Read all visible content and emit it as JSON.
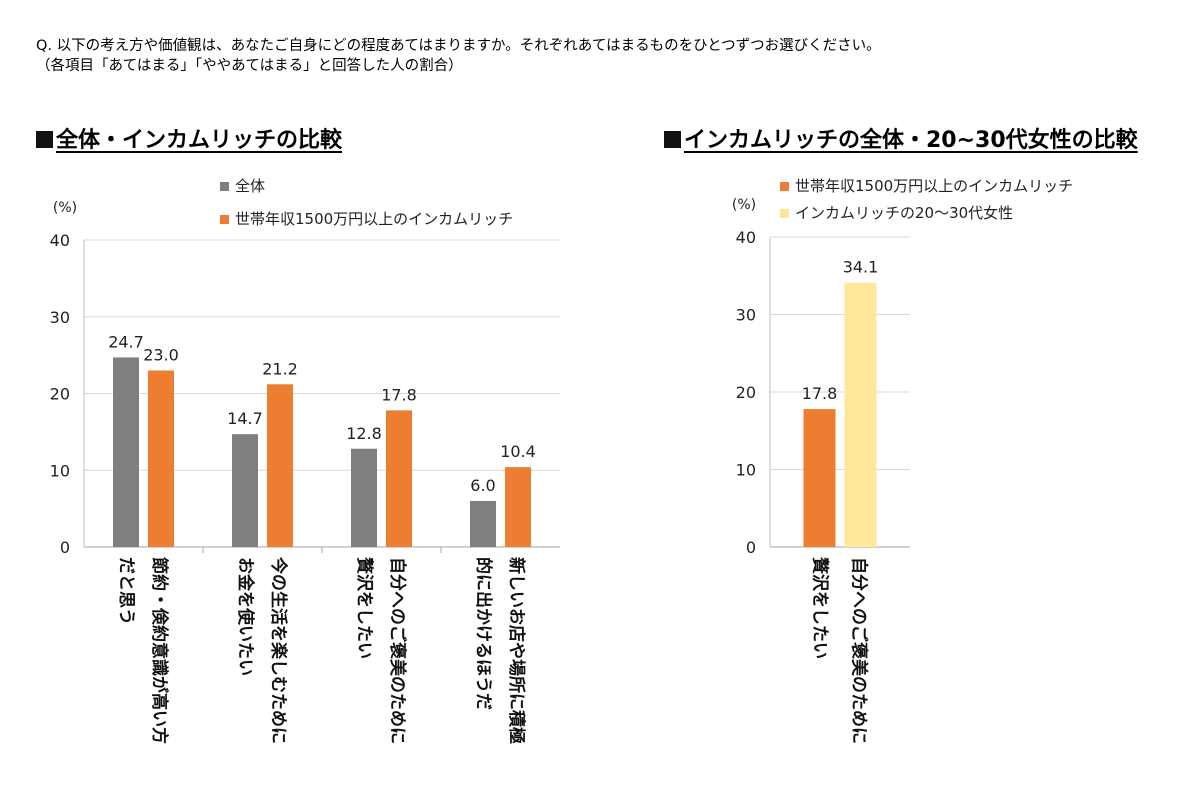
{
  "header": {
    "question": "Q. 以下の考え方や価値観は、あなたご自身にどの程度あてはまりますか。それぞれあてはまるものをひとつずつお選びください。",
    "note": "（各項目「あてはまる」「ややあてはまる」と回答した人の割合）"
  },
  "chart_data": [
    {
      "type": "bar",
      "title": "全体・インカムリッチの比較",
      "ylabel": "(%)",
      "ylim": [
        0,
        40
      ],
      "yticks": [
        0,
        10,
        20,
        30,
        40
      ],
      "categories": [
        "節約・倹約意識が高い方だと思う",
        "今の生活を楽しむためにお金を使いたい",
        "自分へのご褒美のために贅沢をしたい",
        "新しいお店や場所に積極的に出かけるほうだ"
      ],
      "category_lines": [
        [
          "節約・倹約意識が高い方",
          "だと思う"
        ],
        [
          "今の生活を楽しむために",
          "お金を使いたい"
        ],
        [
          "自分へのご褒美のために",
          "贅沢をしたい"
        ],
        [
          "新しいお店や場所に積極",
          "的に出かけるほうだ"
        ]
      ],
      "series": [
        {
          "name": "全体",
          "color": "#7f7f7f",
          "values": [
            24.7,
            14.7,
            12.8,
            6.0
          ]
        },
        {
          "name": "世帯年収1500万円以上のインカムリッチ",
          "color": "#ed7d31",
          "values": [
            23.0,
            21.2,
            17.8,
            10.4
          ]
        }
      ],
      "grid": true,
      "legend": "top"
    },
    {
      "type": "bar",
      "title": "インカムリッチの全体・20~30代女性の比較",
      "ylabel": "(%)",
      "ylim": [
        0,
        40
      ],
      "yticks": [
        0,
        10,
        20,
        30,
        40
      ],
      "categories": [
        "自分へのご褒美のために贅沢をしたい"
      ],
      "category_lines": [
        [
          "自分へのご褒美のために",
          "贅沢をしたい"
        ]
      ],
      "series": [
        {
          "name": "世帯年収1500万円以上のインカムリッチ",
          "color": "#ed7d31",
          "values": [
            17.8
          ]
        },
        {
          "name": "インカムリッチの20〜30代女性",
          "color": "#ffe699",
          "values": [
            34.1
          ]
        }
      ],
      "grid": true,
      "legend": "top"
    }
  ]
}
